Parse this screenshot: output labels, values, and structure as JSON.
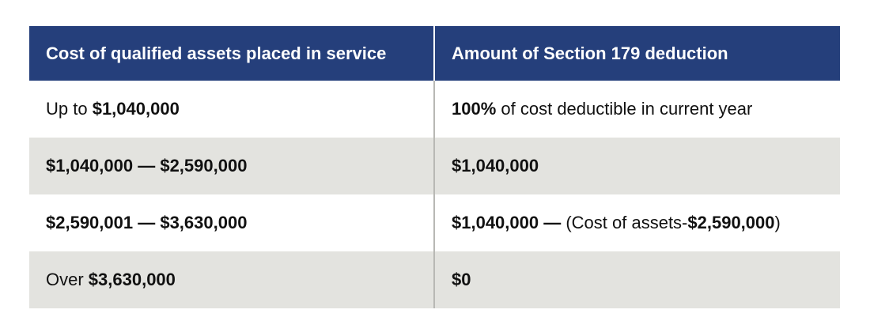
{
  "table": {
    "header": [
      "Cost of qualified assets placed in service",
      "Amount of Section 179 deduction"
    ],
    "rows": [
      [
        [
          {
            "text": "Up to ",
            "bold": false
          },
          {
            "text": "$1,040,000",
            "bold": true
          }
        ],
        [
          {
            "text": "100%",
            "bold": true
          },
          {
            "text": " of cost deductible in current year",
            "bold": false
          }
        ]
      ],
      [
        [
          {
            "text": "$1,040,000 — $2,590,000",
            "bold": true
          }
        ],
        [
          {
            "text": "$1,040,000",
            "bold": true
          }
        ]
      ],
      [
        [
          {
            "text": "$2,590,001 — $3,630,000",
            "bold": true
          }
        ],
        [
          {
            "text": "$1,040,000 — ",
            "bold": true
          },
          {
            "text": "(Cost of assets-",
            "bold": false
          },
          {
            "text": "$2,590,000",
            "bold": true
          },
          {
            "text": ")",
            "bold": false
          }
        ]
      ],
      [
        [
          {
            "text": "Over ",
            "bold": false
          },
          {
            "text": "$3,630,000",
            "bold": true
          }
        ],
        [
          {
            "text": "$0",
            "bold": true
          }
        ]
      ]
    ]
  }
}
